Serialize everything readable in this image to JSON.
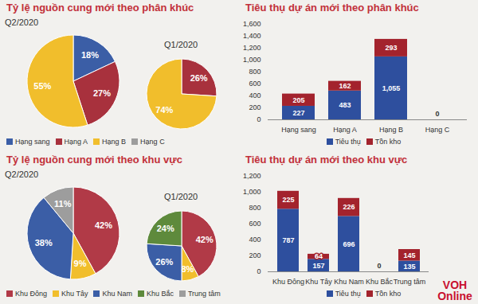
{
  "chart_data": [
    {
      "type": "pie",
      "title": "Tỷ lệ nguồn cung mới theo phân khúc",
      "categories": [
        "Hạng sang",
        "Hạng A",
        "Hạng B",
        "Hạng C"
      ],
      "colors": [
        "#3b5ea6",
        "#a8313d",
        "#f1be2c",
        "#9d9d9d"
      ],
      "series": [
        {
          "name": "Q2/2020",
          "values": [
            18,
            27,
            55,
            0
          ],
          "value_labels": [
            "18%",
            "27%",
            "55%",
            null
          ]
        },
        {
          "name": "Q1/2020",
          "values": [
            0,
            26,
            74,
            0
          ],
          "value_labels": [
            null,
            "26%",
            "74%",
            null
          ]
        }
      ],
      "data_labels": true,
      "legend": "bottom"
    },
    {
      "type": "bar",
      "title": "Tiêu thụ dự án mới theo phân khúc",
      "categories": [
        "Hạng sang",
        "Hạng A",
        "Hạng B",
        "Hạng C"
      ],
      "series": [
        {
          "name": "Tiêu thụ",
          "color": "#2e4f9e",
          "values": [
            227,
            483,
            1055,
            0
          ],
          "value_labels": [
            "227",
            "483",
            "1,055",
            "0"
          ]
        },
        {
          "name": "Tồn kho",
          "color": "#a3232d",
          "values": [
            205,
            162,
            293,
            0
          ],
          "value_labels": [
            "205",
            "162",
            "293",
            null
          ]
        }
      ],
      "stacked": true,
      "data_labels": true,
      "grid": false,
      "legend": "bottom",
      "ylim": [
        0,
        1600
      ],
      "yticks": [
        0,
        200,
        400,
        600,
        800,
        {
          "value": 1000,
          "label": "1,000"
        },
        {
          "value": 1200,
          "label": "1,200"
        },
        {
          "value": 1400,
          "label": "1,400"
        },
        {
          "value": 1600,
          "label": "1,600"
        }
      ]
    },
    {
      "type": "pie",
      "title": "Tỷ lệ nguồn cung mới theo khu vực",
      "categories": [
        "Khu Đông",
        "Khu Tây",
        "Khu Nam",
        "Khu Bắc",
        "Trung tâm"
      ],
      "colors": [
        "#b13a47",
        "#f1be2c",
        "#3b5ea6",
        "#5e8a3c",
        "#9d9d9d"
      ],
      "series": [
        {
          "name": "Q2/2020",
          "values": [
            42,
            9,
            38,
            0,
            11
          ],
          "value_labels": [
            "42%",
            "9%",
            "38%",
            null,
            "11%"
          ]
        },
        {
          "name": "Q1/2020",
          "values": [
            42,
            8,
            26,
            24,
            0
          ],
          "value_labels": [
            "42%",
            "8%",
            "26%",
            "24%",
            null
          ]
        }
      ],
      "data_labels": true,
      "legend": "bottom"
    },
    {
      "type": "bar",
      "title": "Tiêu thụ dự án mới theo khu vực",
      "categories": [
        "Khu Đông",
        "Khu Tây",
        "Khu Nam",
        "Khu Bắc",
        "Trung tâm"
      ],
      "series": [
        {
          "name": "Tiêu thụ",
          "color": "#2e4f9e",
          "values": [
            787,
            157,
            696,
            0,
            135
          ],
          "value_labels": [
            "787",
            "157",
            "696",
            "0",
            "135"
          ]
        },
        {
          "name": "Tồn kho",
          "color": "#a3232d",
          "values": [
            225,
            64,
            226,
            0,
            145
          ],
          "value_labels": [
            "225",
            "64",
            "226",
            null,
            "145"
          ]
        }
      ],
      "stacked": true,
      "data_labels": true,
      "grid": false,
      "legend": "bottom",
      "ylim": [
        0,
        1200
      ],
      "yticks": [
        0,
        200,
        400,
        600,
        800,
        {
          "value": 1000,
          "label": "1,000"
        },
        {
          "value": 1200,
          "label": "1,200"
        }
      ]
    }
  ],
  "logo": "VOH Online"
}
